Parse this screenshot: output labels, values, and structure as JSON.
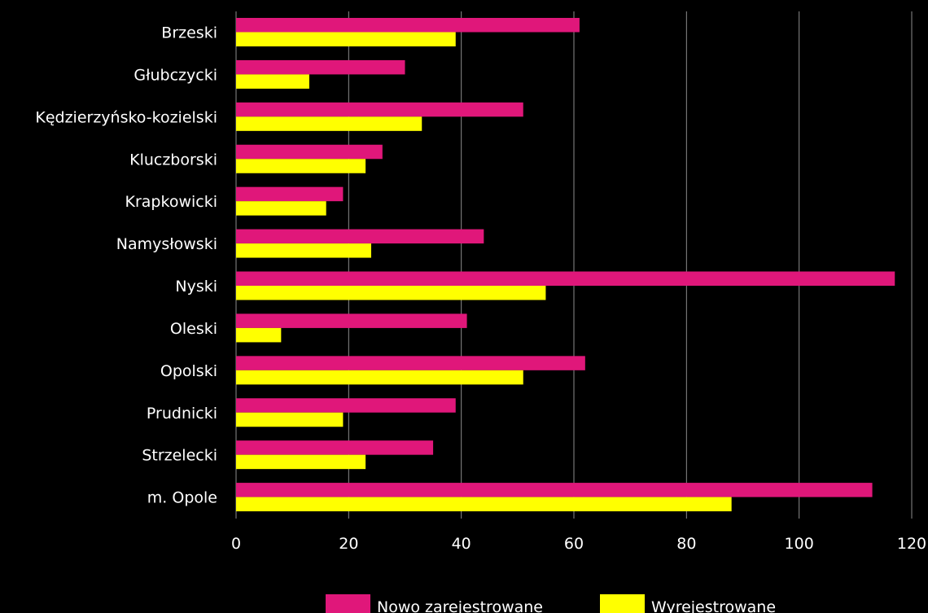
{
  "chart_data": {
    "type": "bar",
    "orientation": "horizontal",
    "categories": [
      "Brzeski",
      "Głubczycki",
      "Kędzierzyńsko-kozielski",
      "Kluczborski",
      "Krapkowicki",
      "Namysłowski",
      "Nyski",
      "Oleski",
      "Opolski",
      "Prudnicki",
      "Strzelecki",
      "m. Opole"
    ],
    "series": [
      {
        "name": "Nowo zarejestrowane",
        "color": "#e0177a",
        "values": [
          61,
          30,
          51,
          26,
          19,
          44,
          117,
          41,
          62,
          39,
          35,
          113
        ]
      },
      {
        "name": "Wyrejestrowane",
        "color": "#ffff00",
        "values": [
          39,
          13,
          33,
          23,
          16,
          24,
          55,
          8,
          51,
          19,
          23,
          88
        ]
      }
    ],
    "xlim": [
      0,
      120
    ],
    "xticks": [
      "0",
      "20",
      "40",
      "60",
      "80",
      "100",
      "120"
    ],
    "grid": true,
    "legend": "bottom-center",
    "background": "#000000",
    "gridColor": "#8c8c8c"
  }
}
